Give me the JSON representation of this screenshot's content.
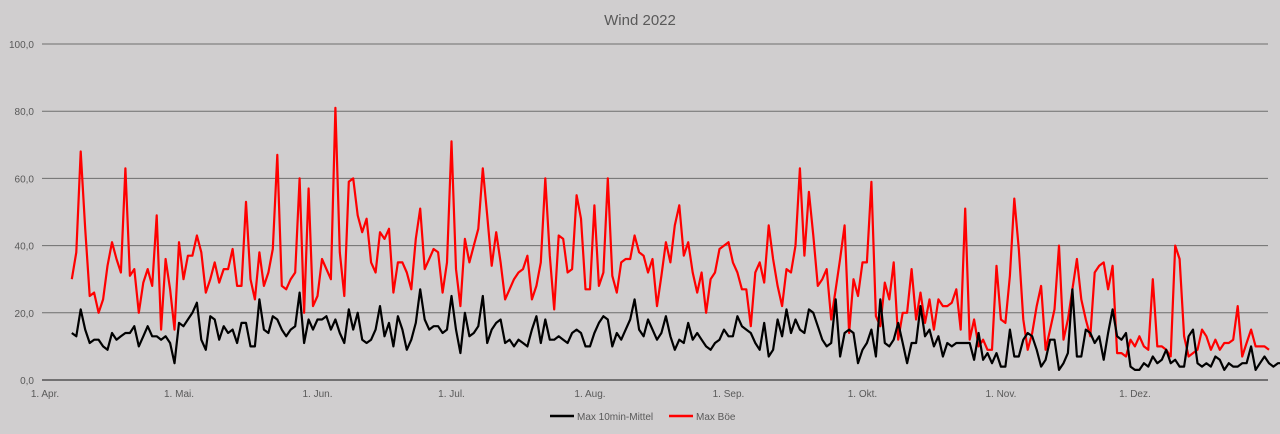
{
  "chart_data": {
    "type": "line",
    "title": "Wind 2022",
    "xlabel": "",
    "ylabel": "",
    "ylim": [
      0,
      100
    ],
    "y_ticks": [
      "0,0",
      "20,0",
      "40,0",
      "60,0",
      "80,0",
      "100,0"
    ],
    "y_tick_values": [
      0,
      20,
      40,
      60,
      80,
      100
    ],
    "x_ticks": [
      "1. Apr.",
      "1. Mai.",
      "1. Jun.",
      "1. Jul.",
      "1. Aug.",
      "1. Sep.",
      "1. Okt.",
      "1. Nov.",
      "1. Dez."
    ],
    "x_tick_days": [
      0,
      30,
      61,
      91,
      122,
      153,
      183,
      214,
      244
    ],
    "x_range_days": [
      0,
      275
    ],
    "series_start_day": 6,
    "grid": true,
    "legend_position": "bottom",
    "series": [
      {
        "name": "Max 10min-Mittel",
        "color": "#000000",
        "values": [
          14,
          13,
          21,
          15,
          11,
          12,
          12,
          10,
          9,
          14,
          12,
          13,
          14,
          14,
          16,
          10,
          13,
          16,
          13,
          13,
          12,
          13,
          11,
          5,
          17,
          16,
          18,
          20,
          23,
          12,
          9,
          19,
          18,
          12,
          16,
          14,
          15,
          11,
          17,
          17,
          10,
          10,
          24,
          15,
          14,
          19,
          18,
          15,
          13,
          15,
          16,
          26,
          11,
          18,
          15,
          18,
          18,
          19,
          15,
          18,
          14,
          11,
          21,
          15,
          20,
          12,
          11,
          12,
          15,
          22,
          13,
          17,
          10,
          19,
          15,
          9,
          12,
          17,
          27,
          18,
          15,
          16,
          16,
          14,
          15,
          25,
          15,
          8,
          20,
          13,
          14,
          16,
          25,
          11,
          15,
          17,
          18,
          11,
          12,
          10,
          12,
          11,
          10,
          15,
          19,
          11,
          18,
          12,
          12,
          13,
          12,
          11,
          14,
          15,
          14,
          10,
          10,
          14,
          17,
          19,
          18,
          10,
          14,
          12,
          15,
          18,
          24,
          15,
          13,
          18,
          15,
          12,
          14,
          19,
          13,
          9,
          12,
          11,
          17,
          12,
          14,
          12,
          10,
          9,
          11,
          12,
          15,
          13,
          13,
          19,
          16,
          15,
          14,
          11,
          9,
          17,
          7,
          9,
          18,
          13,
          21,
          14,
          18,
          15,
          14,
          21,
          20,
          16,
          12,
          10,
          11,
          24,
          7,
          14,
          15,
          14,
          5,
          9,
          11,
          15,
          7,
          24,
          11,
          10,
          12,
          17,
          11,
          5,
          11,
          11,
          22,
          13,
          15,
          10,
          13,
          7,
          11,
          10,
          11,
          11,
          11,
          11,
          6,
          14,
          6,
          8,
          5,
          8,
          4,
          4,
          15,
          7,
          7,
          12,
          14,
          13,
          9,
          4,
          6,
          12,
          12,
          3,
          5,
          8,
          27,
          7,
          7,
          15,
          14,
          11,
          13,
          6,
          14,
          21,
          13,
          12,
          14,
          4,
          3,
          3,
          5,
          4,
          7,
          5,
          6,
          9,
          5,
          6,
          4,
          4,
          13,
          15,
          5,
          4,
          5,
          4,
          7,
          6,
          3,
          5,
          4,
          4,
          5,
          5,
          10,
          3,
          5,
          7,
          5,
          4,
          5,
          5,
          4
        ]
      },
      {
        "name": "Max Böe",
        "color": "#ff0000",
        "values": [
          30,
          38,
          68,
          45,
          25,
          26,
          20,
          24,
          34,
          41,
          36,
          32,
          63,
          31,
          33,
          20,
          29,
          33,
          28,
          49,
          15,
          36,
          27,
          15,
          41,
          30,
          37,
          37,
          43,
          38,
          26,
          30,
          35,
          29,
          33,
          33,
          39,
          28,
          28,
          53,
          30,
          24,
          38,
          28,
          32,
          39,
          67,
          28,
          27,
          30,
          32,
          60,
          20,
          57,
          22,
          25,
          36,
          33,
          30,
          81,
          38,
          25,
          59,
          60,
          49,
          44,
          48,
          35,
          32,
          44,
          42,
          45,
          26,
          35,
          35,
          32,
          27,
          42,
          51,
          33,
          36,
          39,
          38,
          26,
          35,
          71,
          33,
          22,
          42,
          35,
          40,
          45,
          63,
          49,
          34,
          44,
          35,
          24,
          27,
          30,
          32,
          33,
          37,
          24,
          28,
          35,
          60,
          37,
          21,
          43,
          42,
          32,
          33,
          55,
          48,
          27,
          27,
          52,
          28,
          32,
          60,
          31,
          26,
          35,
          36,
          36,
          43,
          38,
          37,
          32,
          36,
          22,
          31,
          41,
          35,
          46,
          52,
          37,
          41,
          32,
          26,
          32,
          20,
          30,
          32,
          39,
          40,
          41,
          35,
          32,
          27,
          27,
          16,
          32,
          35,
          29,
          46,
          36,
          28,
          22,
          33,
          32,
          40,
          63,
          37,
          56,
          43,
          28,
          30,
          33,
          18,
          27,
          36,
          46,
          14,
          30,
          25,
          35,
          35,
          59,
          19,
          16,
          29,
          24,
          35,
          12,
          20,
          20,
          33,
          18,
          26,
          17,
          24,
          15,
          24,
          22,
          22,
          23,
          27,
          15,
          51,
          12,
          18,
          10,
          12,
          9,
          9,
          34,
          18,
          17,
          31,
          54,
          39,
          18,
          9,
          14,
          22,
          28,
          9,
          15,
          21,
          40,
          12,
          18,
          27,
          36,
          24,
          18,
          13,
          32,
          34,
          35,
          27,
          34,
          8,
          8,
          7,
          12,
          10,
          13,
          10,
          9,
          30,
          10,
          10,
          9,
          7,
          40,
          36,
          13,
          7,
          8,
          9,
          15,
          13,
          9,
          12,
          9,
          11,
          11,
          12,
          22,
          7,
          11,
          15,
          10,
          10,
          10,
          9
        ]
      }
    ]
  }
}
